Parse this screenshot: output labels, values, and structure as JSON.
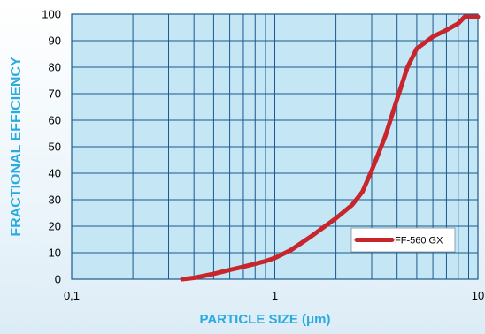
{
  "chart_data": {
    "type": "line",
    "title": "",
    "xlabel": "PARTICLE SIZE (μm)",
    "ylabel": "FRACTIONAL EFFICIENCY",
    "x_scale": "log",
    "xlim": [
      0.1,
      10
    ],
    "ylim": [
      0,
      100
    ],
    "x_ticks": [
      {
        "value": 0.1,
        "label": "0,1"
      },
      {
        "value": 1,
        "label": "1"
      },
      {
        "value": 10,
        "label": "10"
      }
    ],
    "y_ticks": [
      0,
      10,
      20,
      30,
      40,
      50,
      60,
      70,
      80,
      90,
      100
    ],
    "grid": true,
    "legend_position": "bottom-right",
    "colors": {
      "plot_background": "#c4e6f5",
      "grid": "#1b5a8c",
      "series": "#c8262c",
      "axis_title": "#29abe2"
    },
    "series": [
      {
        "name": "FF-560 GX",
        "x": [
          0.35,
          0.4,
          0.5,
          0.6,
          0.7,
          0.8,
          0.9,
          1.0,
          1.2,
          1.5,
          2.0,
          2.4,
          2.7,
          3.0,
          3.5,
          4.0,
          4.5,
          5.0,
          6.0,
          7.0,
          8.0,
          8.6,
          10.0
        ],
        "y": [
          0,
          0.5,
          2,
          3.5,
          4.7,
          5.8,
          6.8,
          8,
          11,
          16,
          23,
          28,
          33,
          41,
          54,
          68,
          80,
          87,
          91.5,
          94,
          96.5,
          99,
          99
        ]
      }
    ]
  }
}
